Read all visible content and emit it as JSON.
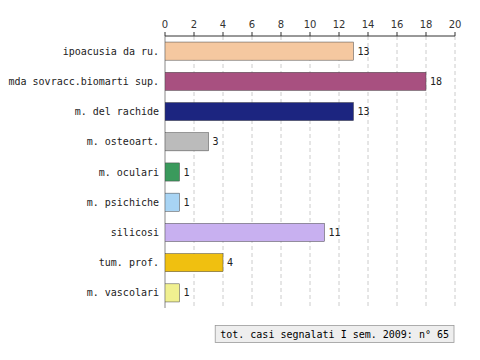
{
  "chart_data": {
    "type": "bar",
    "orientation": "horizontal",
    "categories": [
      "ipoacusia da ru.",
      "mda sovracc.biomarti sup.",
      "m. del rachide",
      "m. osteoart.",
      "m. oculari",
      "m. psichiche",
      "silicosi",
      "tum. prof.",
      "m. vascolari"
    ],
    "values": [
      13,
      18,
      13,
      3,
      1,
      1,
      11,
      4,
      1
    ],
    "colors": [
      "#F5C8A0",
      "#A85080",
      "#1C2580",
      "#BBBBBB",
      "#3A9A5C",
      "#A8D4F4",
      "#C8B0F0",
      "#F0C010",
      "#F0F090"
    ],
    "xlim": [
      0,
      20
    ],
    "xticks": [
      0,
      2,
      4,
      6,
      8,
      10,
      12,
      14,
      16,
      18,
      20
    ],
    "grid": true,
    "data_labels": true,
    "annotation": "tot. casi segnalati I sem. 2009: n° 65"
  }
}
